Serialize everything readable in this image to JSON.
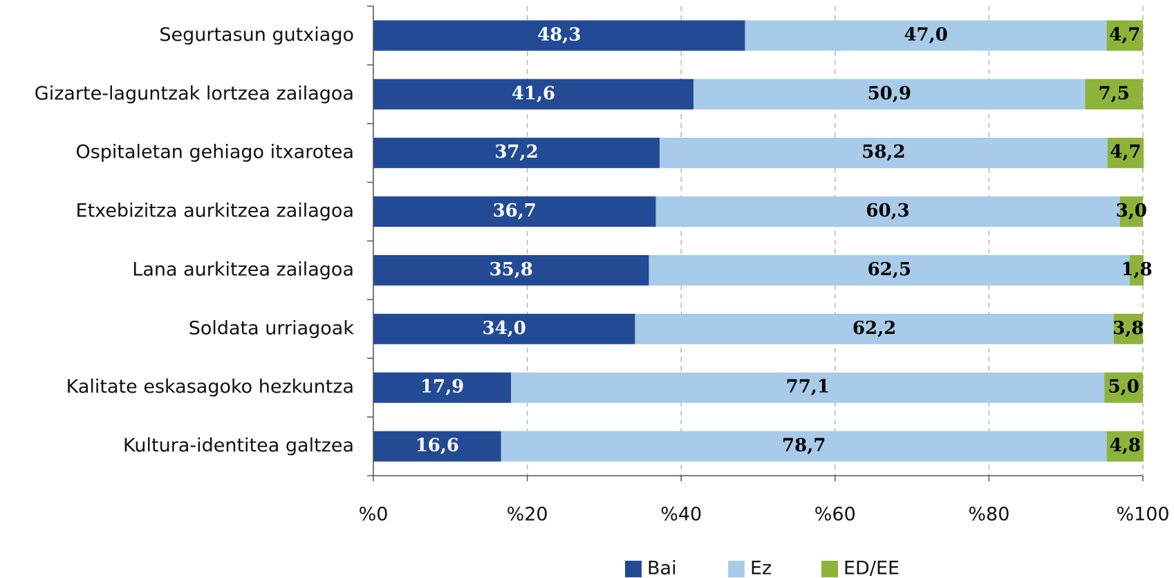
{
  "chart_data": {
    "type": "stacked_barh",
    "categories": [
      "Segurtasun gutxiago",
      "Gizarte-laguntzak lortzea zailagoa",
      "Ospitaletan gehiago itxarotea",
      "Etxebizitza aurkitzea zailagoa",
      "Lana aurkitzea zailagoa",
      "Soldata urriagoak",
      "Kalitate eskasagoko hezkuntza",
      "Kultura-identitea galtzea"
    ],
    "series": [
      {
        "name": "Bai",
        "color": "#234a94",
        "label_color": "#ffffff",
        "values": [
          48.3,
          41.6,
          37.2,
          36.7,
          35.8,
          34.0,
          17.9,
          16.6
        ],
        "value_labels": [
          "48,3",
          "41,6",
          "37,2",
          "36,7",
          "35,8",
          "34,0",
          "17,9",
          "16,6"
        ]
      },
      {
        "name": "Ez",
        "color": "#a7cbe9",
        "label_color": "#000000",
        "values": [
          47.0,
          50.9,
          58.2,
          60.3,
          62.5,
          62.2,
          77.1,
          78.7
        ],
        "value_labels": [
          "47,0",
          "50,9",
          "58,2",
          "60,3",
          "62,5",
          "62,2",
          "77,1",
          "78,7"
        ]
      },
      {
        "name": "ED/EE",
        "color": "#8db33a",
        "label_color": "#000000",
        "values": [
          4.7,
          7.5,
          4.7,
          3.0,
          1.8,
          3.8,
          5.0,
          4.8
        ],
        "value_labels": [
          "4,7",
          "7,5",
          "4,7",
          "3,0",
          "1,8",
          "3,8",
          "5,0",
          "4,8"
        ]
      }
    ],
    "xlim": [
      0,
      100
    ],
    "xticks": [
      {
        "value": 0,
        "label": "%0"
      },
      {
        "value": 20,
        "label": "%20"
      },
      {
        "value": 40,
        "label": "%40"
      },
      {
        "value": 60,
        "label": "%60"
      },
      {
        "value": 80,
        "label": "%80"
      },
      {
        "value": 100,
        "label": "%100"
      }
    ],
    "grid": true,
    "legend": "bottom"
  }
}
